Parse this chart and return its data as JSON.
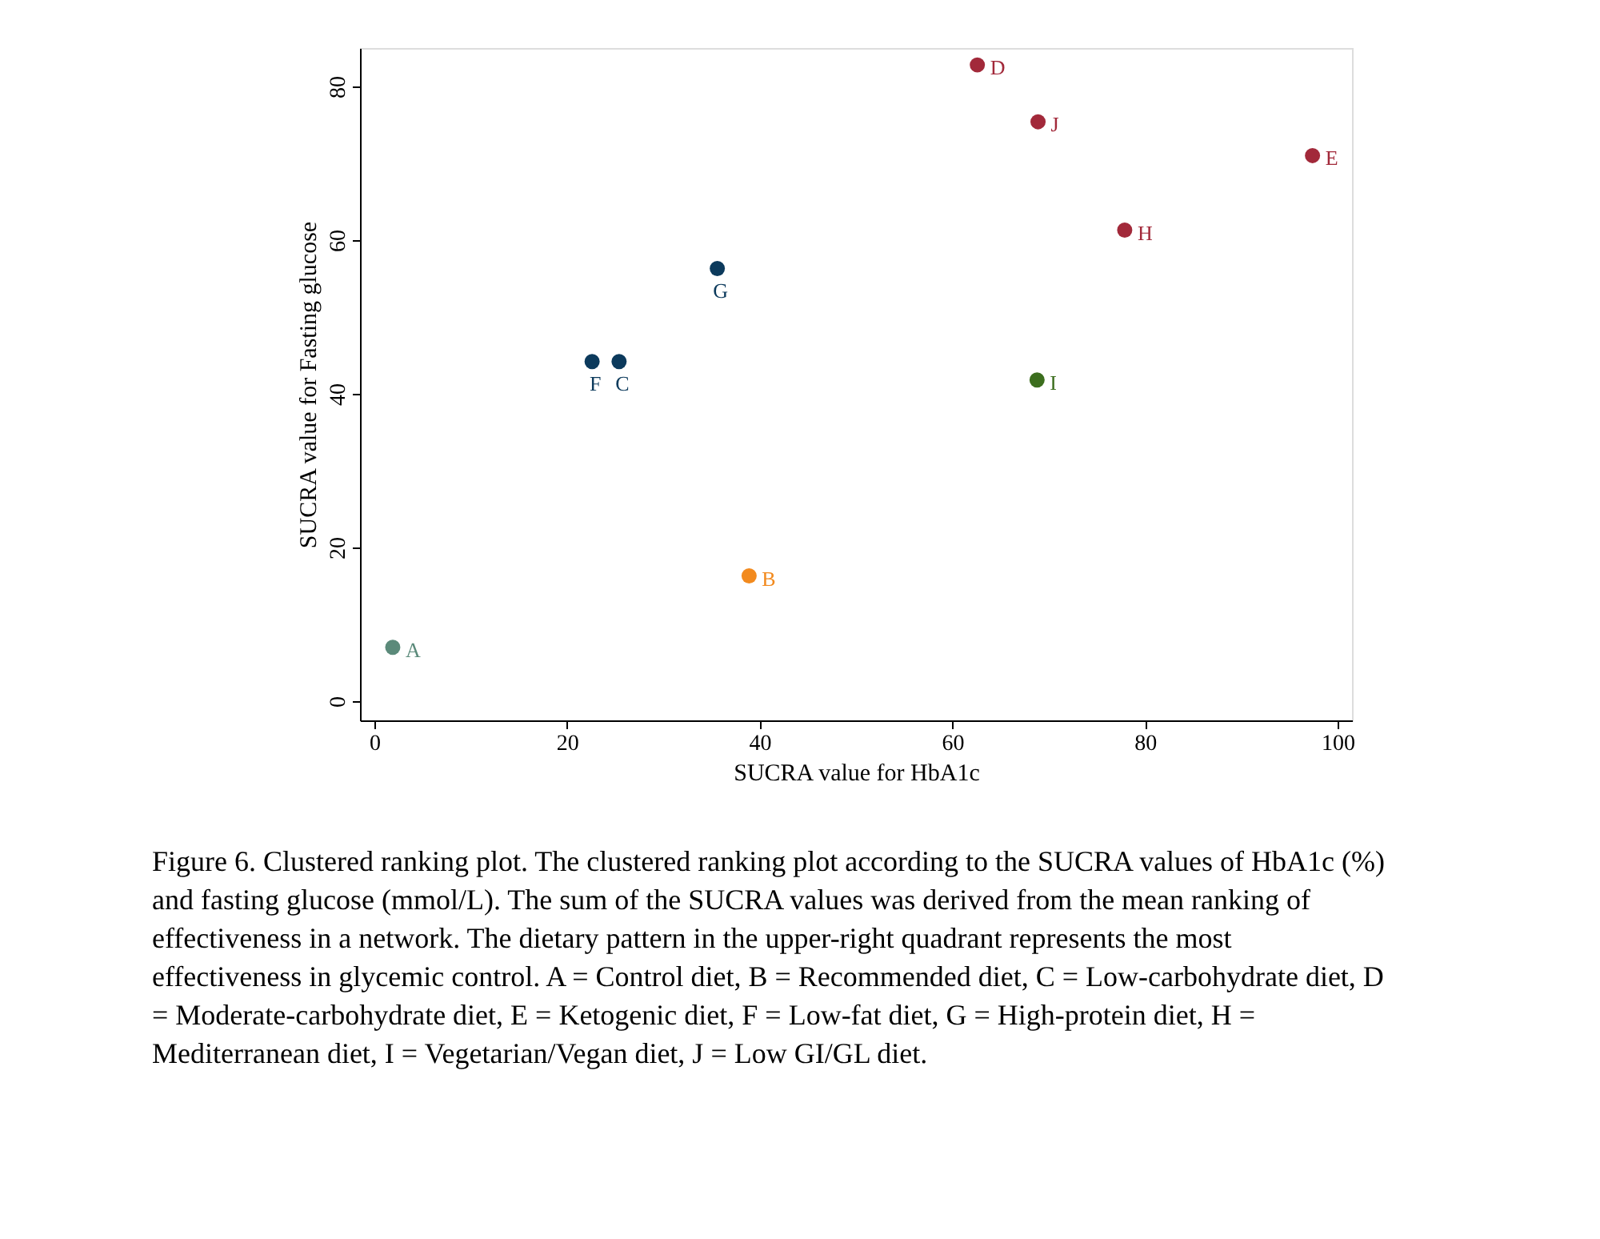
{
  "chart_data": {
    "type": "scatter",
    "xlabel": "SUCRA value for HbA1c",
    "ylabel": "SUCRA value for Fasting glucose",
    "x": [
      1.9,
      38.9,
      22.6,
      25.4,
      35.6,
      62.6,
      68.9,
      97.4,
      77.9,
      68.8
    ],
    "values": [
      7.0,
      16.3,
      44.2,
      44.2,
      56.3,
      82.8,
      75.4,
      71.0,
      61.3,
      41.8
    ],
    "colors": [
      "#5b8a7a",
      "#f28a1e",
      "#0c3a5c",
      "#0c3a5c",
      "#0c3a5c",
      "#a2293a",
      "#a2293a",
      "#a2293a",
      "#a2293a",
      "#3c6e1e"
    ],
    "xlim": [
      -1.5,
      101.5
    ],
    "ylim": [
      -2.5,
      85
    ],
    "xticks": [
      0,
      20,
      40,
      60,
      80,
      100
    ],
    "yticks": [
      0,
      20,
      40,
      60,
      80
    ],
    "grid": false,
    "marker": "circle",
    "annotations": [
      {
        "text": "A",
        "x": 1.9,
        "y": 7.0
      },
      {
        "text": "B",
        "x": 38.9,
        "y": 16.3
      },
      {
        "text": "F",
        "x": 22.6,
        "y": 44.2
      },
      {
        "text": "C",
        "x": 25.4,
        "y": 44.2
      },
      {
        "text": "G",
        "x": 35.6,
        "y": 56.3
      },
      {
        "text": "D",
        "x": 62.6,
        "y": 82.8
      },
      {
        "text": "J",
        "x": 68.9,
        "y": 75.4
      },
      {
        "text": "E",
        "x": 97.4,
        "y": 71.0
      },
      {
        "text": "H",
        "x": 77.9,
        "y": 61.3
      },
      {
        "text": "I",
        "x": 68.8,
        "y": 41.8
      },
      "Figure 6. Clustered ranking plot. The clustered ranking plot according to the SUCRA values of HbA1c (%) and fasting glucose (mmol/L). The sum of the SUCRA values was derived from the mean ranking of effectiveness in a network. The dietary pattern in the upper-right quadrant represents the most effectiveness in glycemic control. A = Control diet, B = Recommended diet, C = Low-carbohydrate diet, D = Moderate-carbohydrate diet, E = Ketogenic diet, F = Low-fat diet, G = High-protein diet, H = Mediterranean diet, I = Vegetarian/Vegan diet, J = Low GI/GL diet."
    ]
  }
}
